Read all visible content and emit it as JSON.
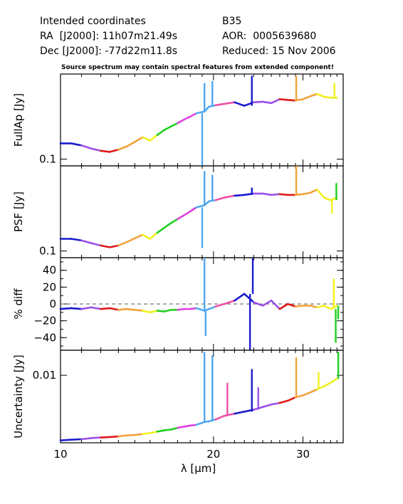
{
  "header": {
    "line1_left": "Intended coordinates",
    "line2_left": "RA  [J2000]: 11h07m21.49s",
    "line3_left": "Dec [J2000]: -77d22m11.8s",
    "line1_right": "B35",
    "line2_right": "AOR:  0005639680",
    "line3_right": "Reduced: 15 Nov 2006"
  },
  "note": "Source spectrum may contain spectral features from extended component!",
  "chart_data": {
    "type": "line",
    "xlabel": "λ [μm]",
    "x_scale": "log",
    "xlim": [
      10,
      36
    ],
    "x_ticks": [
      10,
      20,
      30
    ],
    "order_colors": [
      "#1a1acc",
      "#9a50e6",
      "#e01818",
      "#f2a23a",
      "#f0f020",
      "#20d020",
      "#e040e0",
      "#50a8f0",
      "#f050a8"
    ],
    "panels": [
      {
        "ylabel": "FullAp [Jy]",
        "y_scale": "log",
        "ylim": [
          0.09,
          0.38
        ],
        "y_ticks": [
          {
            "value": 0.1,
            "label": "0.1"
          }
        ],
        "baseline": null,
        "points": [
          [
            10,
            0.128
          ],
          [
            10.5,
            0.128
          ],
          [
            11,
            0.124
          ],
          [
            11.5,
            0.118
          ],
          [
            12,
            0.114
          ],
          [
            12.5,
            0.112
          ],
          [
            13,
            0.116
          ],
          [
            13.5,
            0.122
          ],
          [
            14,
            0.131
          ],
          [
            14.5,
            0.141
          ],
          [
            15,
            0.134
          ],
          [
            15.5,
            0.146
          ],
          [
            16,
            0.158
          ],
          [
            16.5,
            0.167
          ],
          [
            17,
            0.176
          ],
          [
            17.5,
            0.186
          ],
          [
            18,
            0.195
          ],
          [
            18.5,
            0.205
          ],
          [
            19.2,
            0.211
          ],
          [
            19.6,
            0.228
          ],
          [
            20.2,
            0.233
          ],
          [
            21,
            0.238
          ],
          [
            22,
            0.244
          ],
          [
            23,
            0.231
          ],
          [
            24,
            0.244
          ],
          [
            25,
            0.246
          ],
          [
            26,
            0.241
          ],
          [
            27,
            0.256
          ],
          [
            28,
            0.253
          ],
          [
            29,
            0.251
          ],
          [
            30,
            0.256
          ],
          [
            31,
            0.268
          ],
          [
            32,
            0.278
          ],
          [
            33,
            0.266
          ],
          [
            34,
            0.262
          ],
          [
            35,
            0.262
          ]
        ],
        "spikes": [
          [
            19.0,
            0.082
          ],
          [
            19.2,
            0.33
          ],
          [
            19.9,
            0.34
          ],
          [
            23.8,
            0.37
          ],
          [
            29.1,
            0.37
          ],
          [
            34.6,
            0.33
          ]
        ]
      },
      {
        "ylabel": "PSF [Jy]",
        "y_scale": "log",
        "ylim": [
          0.09,
          0.38
        ],
        "y_ticks": [
          {
            "value": 0.1,
            "label": "0.1"
          }
        ],
        "baseline": null,
        "points": [
          [
            10,
            0.121
          ],
          [
            10.5,
            0.121
          ],
          [
            11,
            0.118
          ],
          [
            11.5,
            0.113
          ],
          [
            12,
            0.109
          ],
          [
            12.5,
            0.106
          ],
          [
            13,
            0.109
          ],
          [
            13.5,
            0.115
          ],
          [
            14,
            0.122
          ],
          [
            14.5,
            0.129
          ],
          [
            15,
            0.121
          ],
          [
            15.5,
            0.133
          ],
          [
            16,
            0.144
          ],
          [
            16.5,
            0.155
          ],
          [
            17,
            0.165
          ],
          [
            17.5,
            0.175
          ],
          [
            18,
            0.186
          ],
          [
            18.5,
            0.198
          ],
          [
            19.2,
            0.205
          ],
          [
            19.6,
            0.218
          ],
          [
            20.2,
            0.222
          ],
          [
            21,
            0.231
          ],
          [
            22,
            0.238
          ],
          [
            23,
            0.241
          ],
          [
            24,
            0.246
          ],
          [
            25,
            0.246
          ],
          [
            26,
            0.241
          ],
          [
            27,
            0.244
          ],
          [
            28,
            0.241
          ],
          [
            29,
            0.241
          ],
          [
            30,
            0.244
          ],
          [
            31,
            0.249
          ],
          [
            32,
            0.262
          ],
          [
            33,
            0.231
          ],
          [
            34,
            0.222
          ],
          [
            35,
            0.231
          ]
        ],
        "spikes": [
          [
            19.0,
            0.105
          ],
          [
            19.2,
            0.35
          ],
          [
            19.9,
            0.33
          ],
          [
            23.8,
            0.27
          ],
          [
            29.1,
            0.38
          ],
          [
            34.2,
            0.18
          ],
          [
            34.9,
            0.29
          ]
        ]
      },
      {
        "ylabel": "% diff",
        "y_scale": "linear",
        "ylim": [
          -55,
          55
        ],
        "y_ticks": [
          {
            "value": 40,
            "label": "40"
          },
          {
            "value": 20,
            "label": "20"
          },
          {
            "value": 0,
            "label": "0"
          },
          {
            "value": -20,
            "label": "−20"
          },
          {
            "value": -40,
            "label": "−40"
          }
        ],
        "baseline": 0,
        "points": [
          [
            10,
            -6
          ],
          [
            10.5,
            -5
          ],
          [
            11,
            -6
          ],
          [
            11.5,
            -4
          ],
          [
            12,
            -6
          ],
          [
            12.5,
            -5
          ],
          [
            13,
            -7
          ],
          [
            13.5,
            -6
          ],
          [
            14,
            -7
          ],
          [
            14.5,
            -8
          ],
          [
            15,
            -10
          ],
          [
            15.5,
            -8
          ],
          [
            16,
            -9
          ],
          [
            16.5,
            -7
          ],
          [
            17,
            -7
          ],
          [
            17.5,
            -6
          ],
          [
            18,
            -6
          ],
          [
            18.5,
            -5
          ],
          [
            19.2,
            -8
          ],
          [
            19.6,
            -6
          ],
          [
            20.2,
            -3
          ],
          [
            21,
            0
          ],
          [
            22,
            4
          ],
          [
            23,
            12
          ],
          [
            24,
            2
          ],
          [
            25,
            -2
          ],
          [
            26,
            4
          ],
          [
            27,
            -6
          ],
          [
            28,
            0
          ],
          [
            29,
            -3
          ],
          [
            30,
            -2
          ],
          [
            31,
            -2
          ],
          [
            32,
            -4
          ],
          [
            33,
            -2
          ],
          [
            34,
            -6
          ],
          [
            35,
            -2
          ]
        ],
        "spikes": [
          [
            19.2,
            55
          ],
          [
            19.3,
            -38
          ],
          [
            23.6,
            -55
          ],
          [
            23.9,
            55
          ],
          [
            34.5,
            30
          ],
          [
            34.8,
            -46
          ],
          [
            35.2,
            -18
          ]
        ]
      },
      {
        "ylabel": "Uncertainty [Jy]",
        "y_scale": "log",
        "ylim": [
          0.00135,
          0.021
        ],
        "y_ticks": [
          {
            "value": 0.01,
            "label": "0.01"
          }
        ],
        "baseline": null,
        "points": [
          [
            10,
            0.00145
          ],
          [
            10.5,
            0.00148
          ],
          [
            11,
            0.0015
          ],
          [
            11.5,
            0.00155
          ],
          [
            12,
            0.00158
          ],
          [
            12.5,
            0.0016
          ],
          [
            13,
            0.00163
          ],
          [
            13.5,
            0.00168
          ],
          [
            14,
            0.0017
          ],
          [
            14.5,
            0.00175
          ],
          [
            15,
            0.0018
          ],
          [
            15.5,
            0.00188
          ],
          [
            16,
            0.00195
          ],
          [
            16.5,
            0.002
          ],
          [
            17,
            0.0021
          ],
          [
            17.5,
            0.00218
          ],
          [
            18,
            0.00225
          ],
          [
            18.5,
            0.0023
          ],
          [
            19.2,
            0.0025
          ],
          [
            19.6,
            0.00255
          ],
          [
            20.2,
            0.0027
          ],
          [
            21,
            0.003
          ],
          [
            22,
            0.0032
          ],
          [
            23,
            0.0034
          ],
          [
            24,
            0.0036
          ],
          [
            25,
            0.0039
          ],
          [
            26,
            0.0042
          ],
          [
            27,
            0.0044
          ],
          [
            28,
            0.0047
          ],
          [
            29,
            0.0052
          ],
          [
            30,
            0.0055
          ],
          [
            31,
            0.006
          ],
          [
            32,
            0.0066
          ],
          [
            33,
            0.0072
          ],
          [
            34,
            0.008
          ],
          [
            35,
            0.009
          ]
        ],
        "spikes": [
          [
            19.2,
            0.02
          ],
          [
            19.9,
            0.018
          ],
          [
            21.3,
            0.008
          ],
          [
            23.8,
            0.012
          ],
          [
            24.5,
            0.007
          ],
          [
            29.1,
            0.017
          ],
          [
            32.2,
            0.011
          ],
          [
            35.2,
            0.02
          ]
        ]
      }
    ]
  }
}
